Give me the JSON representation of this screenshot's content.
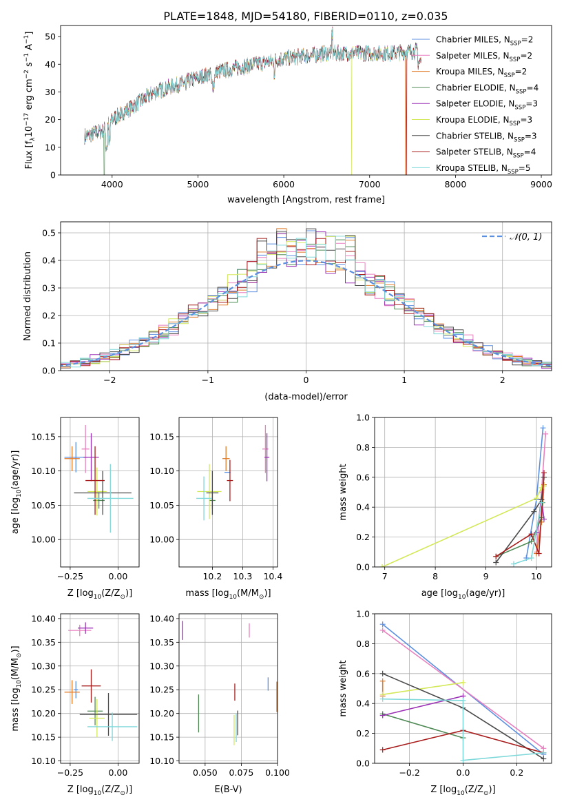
{
  "figure_title": "PLATE=1848, MJD=54180, FIBERID=0110, z=0.035",
  "colors": {
    "Chabrier MILES": "#5b8fe0",
    "Salpeter MILES": "#e87fbf",
    "Kroupa MILES": "#e07b2a",
    "Chabrier ELODIE": "#4f8a55",
    "Salpeter ELODIE": "#9b30b5",
    "Kroupa ELODIE": "#d4e85a",
    "Chabrier STELIB": "#4a4a4a",
    "Salpeter STELIB": "#a81c1c",
    "Kroupa STELIB": "#7fd8da",
    "gaussian": "#5b8fe0"
  },
  "chart_data": [
    {
      "id": "spectrum",
      "type": "line",
      "title": "PLATE=1848, MJD=54180, FIBERID=0110, z=0.035",
      "xlabel": "wavelength [Angstrom, rest frame]",
      "ylabel_main": "Flux [f",
      "ylabel_sub": "λ",
      "ylabel_rest": "10",
      "ylabel_sup1": "−17",
      "ylabel_rest2": " erg cm",
      "ylabel_sup2": "−2",
      "ylabel_rest3": " s",
      "ylabel_sup3": "−1",
      "ylabel_rest4": " A",
      "ylabel_sup4": "−1",
      "ylabel_end": "]",
      "xlim": [
        3400,
        9120
      ],
      "ylim": [
        0,
        54
      ],
      "xticks": [
        4000,
        5000,
        6000,
        7000,
        8000,
        9000
      ],
      "yticks": [
        0,
        10,
        20,
        30,
        40,
        50
      ],
      "grid": false,
      "legend_position": "top-right",
      "x_range": [
        3680,
        7600
      ],
      "continuum": [
        [
          3680,
          14
        ],
        [
          3900,
          16
        ],
        [
          4000,
          20
        ],
        [
          4200,
          24
        ],
        [
          4500,
          30
        ],
        [
          4800,
          33
        ],
        [
          5000,
          35
        ],
        [
          5200,
          37
        ],
        [
          5500,
          39
        ],
        [
          6000,
          42
        ],
        [
          6500,
          44
        ],
        [
          7000,
          44
        ],
        [
          7300,
          44
        ],
        [
          7600,
          45
        ]
      ],
      "drops": {
        "Kroupa ELODIE": 6790,
        "Salpeter STELIB": 7430,
        "Kroupa MILES": 7420,
        "Chabrier ELODIE": 3910
      },
      "series": [
        {
          "name": "Chabrier MILES",
          "name_sub": "SSP",
          "nssp": "=2"
        },
        {
          "name": "Salpeter MILES",
          "name_sub": "SSP",
          "nssp": "=2"
        },
        {
          "name": "Kroupa MILES",
          "name_sub": "SSP",
          "nssp": "=2"
        },
        {
          "name": "Chabrier ELODIE",
          "name_sub": "SSP",
          "nssp": "=4"
        },
        {
          "name": "Salpeter ELODIE",
          "name_sub": "SSP",
          "nssp": "=3"
        },
        {
          "name": "Kroupa ELODIE",
          "name_sub": "SSP",
          "nssp": "=3"
        },
        {
          "name": "Chabrier STELIB",
          "name_sub": "SSP",
          "nssp": "=3"
        },
        {
          "name": "Salpeter STELIB",
          "name_sub": "SSP",
          "nssp": "=4"
        },
        {
          "name": "Kroupa STELIB",
          "name_sub": "SSP",
          "nssp": "=5"
        }
      ]
    },
    {
      "id": "residuals",
      "type": "line",
      "xlabel": "(data-model)/error",
      "ylabel": "Normed distribution",
      "xlim": [
        -2.5,
        2.5
      ],
      "ylim": [
        0,
        0.54
      ],
      "xticks": [
        -2,
        -1,
        0,
        1,
        2
      ],
      "yticks": [
        0.0,
        0.1,
        0.2,
        0.3,
        0.4,
        0.5
      ],
      "grid": true,
      "legend": "𝒩(0, 1)",
      "legend_position": "top-right",
      "bin_width": 0.1
    },
    {
      "id": "age_vs_Z",
      "type": "scatter",
      "xlabel": "Z [log",
      "xlabel_sub": "10",
      "xlabel_rest": "(Z/Z",
      "xlabel_sub2": "⊙",
      "xlabel_end": ")]",
      "ylabel": "age  [log",
      "ylabel_sub": "10",
      "ylabel_rest": "(age/yr)]",
      "xlim": [
        -0.3,
        0.11
      ],
      "ylim": [
        9.96,
        10.178
      ],
      "xticks": [
        -0.25,
        0.0
      ],
      "yticks": [
        10.0,
        10.05,
        10.1,
        10.15
      ],
      "grid": true,
      "points": [
        {
          "series": "Chabrier MILES",
          "x": -0.22,
          "y": 10.12,
          "xerr": 0.06,
          "yerr": 0.022
        },
        {
          "series": "Salpeter MILES",
          "x": -0.17,
          "y": 10.132,
          "xerr": 0.02,
          "yerr": 0.035
        },
        {
          "series": "Kroupa MILES",
          "x": -0.24,
          "y": 10.118,
          "xerr": 0.04,
          "yerr": 0.018
        },
        {
          "series": "Chabrier ELODIE",
          "x": -0.1,
          "y": 10.057,
          "xerr": 0.03,
          "yerr": 0.012
        },
        {
          "series": "Salpeter ELODIE",
          "x": -0.14,
          "y": 10.12,
          "xerr": 0.04,
          "yerr": 0.035
        },
        {
          "series": "Kroupa ELODIE",
          "x": -0.11,
          "y": 10.07,
          "xerr": 0.05,
          "yerr": 0.035
        },
        {
          "series": "Chabrier STELIB",
          "x": -0.08,
          "y": 10.068,
          "xerr": 0.15,
          "yerr": 0.032
        },
        {
          "series": "Salpeter STELIB",
          "x": -0.12,
          "y": 10.086,
          "xerr": 0.05,
          "yerr": 0.05
        },
        {
          "series": "Kroupa STELIB",
          "x": -0.04,
          "y": 10.06,
          "xerr": 0.12,
          "yerr": 0.05
        }
      ]
    },
    {
      "id": "age_vs_mass",
      "type": "scatter",
      "xlabel": "mass [log",
      "xlabel_sub": "10",
      "xlabel_rest": "(M/M",
      "xlabel_sub2": "⊙",
      "xlabel_end": ")]",
      "xlim": [
        10.09,
        10.415
      ],
      "ylim": [
        9.96,
        10.178
      ],
      "xticks": [
        10.2,
        10.3,
        10.4
      ],
      "yticks": [
        10.0,
        10.05,
        10.1,
        10.15
      ],
      "grid": true,
      "points": [
        {
          "series": "Chabrier MILES",
          "x": 10.25,
          "y": 10.098,
          "xerr": 0.01,
          "yerr": 0.0
        },
        {
          "series": "Salpeter MILES",
          "x": 10.375,
          "y": 10.132,
          "xerr": 0.01,
          "yerr": 0.035
        },
        {
          "series": "Kroupa MILES",
          "x": 10.245,
          "y": 10.118,
          "xerr": 0.012,
          "yerr": 0.018
        },
        {
          "series": "Chabrier ELODIE",
          "x": 10.2,
          "y": 10.057,
          "xerr": 0.01,
          "yerr": 0.012
        },
        {
          "series": "Salpeter ELODIE",
          "x": 10.38,
          "y": 10.12,
          "xerr": 0.008,
          "yerr": 0.035
        },
        {
          "series": "Kroupa ELODIE",
          "x": 10.19,
          "y": 10.07,
          "xerr": 0.04,
          "yerr": 0.04
        },
        {
          "series": "Chabrier STELIB",
          "x": 10.2,
          "y": 10.068,
          "xerr": 0.02,
          "yerr": 0.032
        },
        {
          "series": "Salpeter STELIB",
          "x": 10.258,
          "y": 10.086,
          "xerr": 0.01,
          "yerr": 0.03
        },
        {
          "series": "Kroupa STELIB",
          "x": 10.172,
          "y": 10.06,
          "xerr": 0.025,
          "yerr": 0.032
        }
      ]
    },
    {
      "id": "weight_vs_age",
      "type": "line",
      "xlabel": "age  [log",
      "xlabel_sub": "10",
      "xlabel_rest": "(age/yr)]",
      "ylabel": "mass weight",
      "xlim": [
        6.8,
        10.3
      ],
      "ylim": [
        0,
        1
      ],
      "xticks": [
        7,
        8,
        9,
        10
      ],
      "yticks": [
        0.0,
        0.2,
        0.4,
        0.6,
        0.8,
        1.0
      ],
      "grid": true,
      "series": [
        {
          "name": "Chabrier MILES",
          "x": [
            9.8,
            10.0,
            10.13
          ],
          "y": [
            0.06,
            0.45,
            0.93
          ]
        },
        {
          "name": "Salpeter MILES",
          "x": [
            10.0,
            10.1,
            10.18
          ],
          "y": [
            0.1,
            0.5,
            0.89
          ]
        },
        {
          "name": "Kroupa MILES",
          "x": [
            10.0,
            10.1,
            10.15
          ],
          "y": [
            0.09,
            0.3,
            0.55
          ]
        },
        {
          "name": "Chabrier ELODIE",
          "x": [
            9.2,
            9.9,
            10.1,
            10.12
          ],
          "y": [
            0.07,
            0.17,
            0.33,
            0.43
          ]
        },
        {
          "name": "Salpeter ELODIE",
          "x": [
            10.0,
            10.1,
            10.15
          ],
          "y": [
            0.23,
            0.45,
            0.32
          ]
        },
        {
          "name": "Kroupa ELODIE",
          "x": [
            6.95,
            10.0,
            10.1,
            10.15
          ],
          "y": [
            0.0,
            0.46,
            0.53,
            0.54
          ]
        },
        {
          "name": "Chabrier STELIB",
          "x": [
            9.2,
            9.95,
            10.1,
            10.15
          ],
          "y": [
            0.03,
            0.37,
            0.45,
            0.6
          ]
        },
        {
          "name": "Salpeter STELIB",
          "x": [
            9.2,
            9.9,
            10.05,
            10.15
          ],
          "y": [
            0.07,
            0.22,
            0.09,
            0.63
          ]
        },
        {
          "name": "Kroupa STELIB",
          "x": [
            9.55,
            9.9,
            10.1
          ],
          "y": [
            0.02,
            0.06,
            0.43
          ]
        }
      ]
    },
    {
      "id": "mass_vs_Z",
      "type": "scatter",
      "xlabel": "Z [log",
      "xlabel_sub": "10",
      "xlabel_rest": "(Z/Z",
      "xlabel_sub2": "⊙",
      "xlabel_end": ")]",
      "ylabel": "mass [log",
      "ylabel_sub": "10",
      "ylabel_rest": "(M/M",
      "ylabel_sub2": "⊙",
      "ylabel_end": ")]",
      "xlim": [
        -0.3,
        0.11
      ],
      "ylim": [
        10.095,
        10.41
      ],
      "xticks": [
        -0.25,
        0.0
      ],
      "yticks": [
        10.1,
        10.15,
        10.2,
        10.25,
        10.3,
        10.35,
        10.4
      ],
      "grid": true,
      "points": [
        {
          "series": "Chabrier MILES",
          "x": -0.22,
          "y": 10.25,
          "xerr": 0.01,
          "yerr": 0.018
        },
        {
          "series": "Salpeter MILES",
          "x": -0.2,
          "y": 10.375,
          "xerr": 0.06,
          "yerr": 0.012
        },
        {
          "series": "Kroupa MILES",
          "x": -0.24,
          "y": 10.245,
          "xerr": 0.04,
          "yerr": 0.025
        },
        {
          "series": "Chabrier ELODIE",
          "x": -0.12,
          "y": 10.205,
          "xerr": 0.04,
          "yerr": 0.03
        },
        {
          "series": "Salpeter ELODIE",
          "x": -0.17,
          "y": 10.38,
          "xerr": 0.04,
          "yerr": 0.012
        },
        {
          "series": "Kroupa ELODIE",
          "x": -0.11,
          "y": 10.19,
          "xerr": 0.04,
          "yerr": 0.04
        },
        {
          "series": "Chabrier STELIB",
          "x": -0.05,
          "y": 10.198,
          "xerr": 0.15,
          "yerr": 0.045
        },
        {
          "series": "Salpeter STELIB",
          "x": -0.14,
          "y": 10.258,
          "xerr": 0.05,
          "yerr": 0.035
        },
        {
          "series": "Kroupa STELIB",
          "x": -0.03,
          "y": 10.172,
          "xerr": 0.13,
          "yerr": 0.03
        }
      ]
    },
    {
      "id": "mass_vs_ebv",
      "type": "scatter",
      "xlabel": "E(B-V)",
      "xlim": [
        0.032,
        0.1
      ],
      "ylim": [
        10.095,
        10.41
      ],
      "xticks": [
        0.05,
        0.075,
        0.1
      ],
      "xtick_labels": [
        "0.050",
        "0.075",
        "0.100"
      ],
      "yticks": [
        10.1,
        10.15,
        10.2,
        10.25,
        10.3,
        10.35,
        10.4
      ],
      "grid": true,
      "points": [
        {
          "series": "Chabrier MILES",
          "x": 0.0935,
          "y": 10.262,
          "yerr": 0.014
        },
        {
          "series": "Salpeter MILES",
          "x": 0.0805,
          "y": 10.375,
          "yerr": 0.015
        },
        {
          "series": "Kroupa MILES",
          "x": 0.0995,
          "y": 10.235,
          "yerr": 0.032
        },
        {
          "series": "Chabrier ELODIE",
          "x": 0.0455,
          "y": 10.2,
          "yerr": 0.04
        },
        {
          "series": "Salpeter ELODIE",
          "x": 0.0345,
          "y": 10.375,
          "yerr": 0.02
        },
        {
          "series": "Kroupa ELODIE",
          "x": 0.07,
          "y": 10.165,
          "yerr": 0.032
        },
        {
          "series": "Chabrier STELIB",
          "x": 0.0725,
          "y": 10.18,
          "yerr": 0.026
        },
        {
          "series": "Salpeter STELIB",
          "x": 0.0705,
          "y": 10.245,
          "yerr": 0.018
        },
        {
          "series": "Kroupa STELIB",
          "x": 0.0715,
          "y": 10.17,
          "yerr": 0.03
        }
      ]
    },
    {
      "id": "weight_vs_Z",
      "type": "line",
      "xlabel": "Z [log",
      "xlabel_sub": "10",
      "xlabel_rest": "(Z/Z",
      "xlabel_sub2": "⊙",
      "xlabel_end": ")]",
      "ylabel": "mass weight",
      "xlim": [
        -0.33,
        0.33
      ],
      "ylim": [
        0,
        1
      ],
      "xticks": [
        -0.2,
        0.0,
        0.2
      ],
      "yticks": [
        0.0,
        0.2,
        0.4,
        0.6,
        0.8,
        1.0
      ],
      "grid": true,
      "series": [
        {
          "name": "Chabrier MILES",
          "x": [
            -0.3,
            0.3
          ],
          "y": [
            0.93,
            0.06
          ]
        },
        {
          "name": "Salpeter MILES",
          "x": [
            -0.3,
            0.3
          ],
          "y": [
            0.89,
            0.1
          ]
        },
        {
          "name": "Kroupa MILES",
          "x": [
            -0.3,
            -0.3
          ],
          "y": [
            0.45,
            0.55
          ]
        },
        {
          "name": "Chabrier ELODIE",
          "x": [
            -0.3,
            0.0
          ],
          "y": [
            0.33,
            0.17
          ]
        },
        {
          "name": "Salpeter ELODIE",
          "x": [
            -0.3,
            0.0
          ],
          "y": [
            0.32,
            0.45
          ]
        },
        {
          "name": "Kroupa ELODIE",
          "x": [
            -0.3,
            0.0
          ],
          "y": [
            0.46,
            0.54
          ]
        },
        {
          "name": "Chabrier STELIB",
          "x": [
            -0.3,
            0.0,
            0.3
          ],
          "y": [
            0.6,
            0.37,
            0.03
          ]
        },
        {
          "name": "Salpeter STELIB",
          "x": [
            -0.3,
            0.0,
            0.3
          ],
          "y": [
            0.09,
            0.22,
            0.07
          ]
        },
        {
          "name": "Kroupa STELIB",
          "x": [
            -0.3,
            0.0,
            0.0,
            0.3
          ],
          "y": [
            0.43,
            0.42,
            0.02,
            0.07
          ]
        }
      ]
    }
  ]
}
